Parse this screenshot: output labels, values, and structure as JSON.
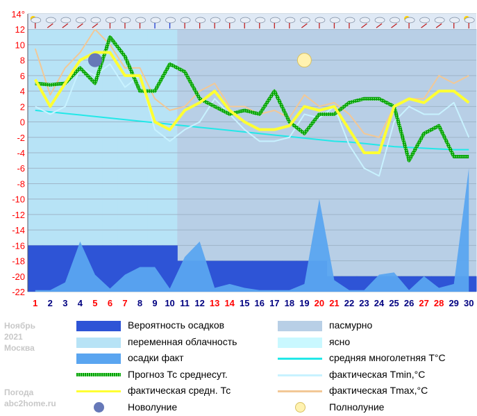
{
  "page": {
    "month": "Ноябрь",
    "year": "2021",
    "city": "Москва",
    "site_line1": "Погода",
    "site_line2": "abc2home.ru"
  },
  "colors": {
    "precip_prob": "#2e54d6",
    "precip_fact": "#5aa5f0",
    "overcast": "#b8cfe6",
    "partly": "#b7e3f6",
    "clear": "#c9f8ff",
    "forecast": "#00a000",
    "actual_mean": "#ffff33",
    "climate_mean": "#22e8e8",
    "tmin": "#c8f2ff",
    "tmax": "#f2c896",
    "weekend": "#ff0000",
    "weekday": "#000080"
  },
  "chart_data": {
    "type": "line",
    "x": [
      1,
      2,
      3,
      4,
      5,
      6,
      7,
      8,
      9,
      10,
      11,
      12,
      13,
      14,
      15,
      16,
      17,
      18,
      19,
      20,
      21,
      22,
      23,
      24,
      25,
      26,
      27,
      28,
      29,
      30
    ],
    "x_labels": [
      "1",
      "2",
      "3",
      "4",
      "5",
      "6",
      "7",
      "8",
      "9",
      "10",
      "11",
      "12",
      "13",
      "14",
      "15",
      "16",
      "17",
      "18",
      "19",
      "20",
      "21",
      "22",
      "23",
      "24",
      "25",
      "26",
      "27",
      "28",
      "29",
      "30"
    ],
    "weekend_days": [
      1,
      5,
      6,
      7,
      13,
      14,
      20,
      21,
      27,
      28
    ],
    "y_ticks": [
      "14°",
      "12",
      "10",
      "8",
      "6",
      "4",
      "2",
      "0",
      "-2",
      "-4",
      "-6",
      "-8",
      "-10",
      "-12",
      "-14",
      "-16",
      "-18",
      "-20",
      "-22"
    ],
    "ylim": [
      -22,
      14
    ],
    "grid": true,
    "sky": [
      "partly",
      "partly",
      "partly",
      "partly",
      "partly",
      "partly",
      "partly",
      "partly",
      "partly",
      "partly",
      "overcast",
      "overcast",
      "overcast",
      "overcast",
      "overcast",
      "overcast",
      "overcast",
      "overcast",
      "overcast",
      "overcast",
      "overcast",
      "overcast",
      "overcast",
      "overcast",
      "overcast",
      "overcast",
      "overcast",
      "overcast",
      "overcast",
      "overcast"
    ],
    "wind_icons": [
      "arrow-up-icon",
      "arrow-ne-icon",
      "arrow-ne-icon",
      "arrow-ne-icon",
      "arrow-ne-icon",
      "arrow-up-icon",
      "arrow-up-icon",
      "arrow-up-icon",
      "arrow-down-icon",
      "arrow-down-icon",
      "arrow-up-icon",
      "arrow-up-icon",
      "arrow-up-icon",
      "arrow-up-icon",
      "arrow-up-icon",
      "arrow-up-icon",
      "arrow-up-icon",
      "arrow-up-icon",
      "arrow-ne-icon",
      "arrow-up-icon",
      "arrow-up-icon",
      "arrow-up-icon",
      "arrow-ne-icon",
      "arrow-ne-icon",
      "arrow-ne-icon",
      "arrow-up-icon",
      "arrow-ne-icon",
      "arrow-ne-icon",
      "arrow-up-icon",
      "arrow-up-icon"
    ],
    "sky_icons": [
      "sun-cloud-icon",
      "cloud-icon",
      "cloud-icon",
      "cloud-icon",
      "cloud-icon",
      "cloud-icon",
      "cloud-icon",
      "cloud-icon",
      "cloud-icon",
      "cloud-icon",
      "cloud-icon",
      "cloud-icon",
      "cloud-icon",
      "cloud-icon",
      "cloud-icon",
      "cloud-icon",
      "cloud-icon",
      "cloud-icon",
      "cloud-icon",
      "cloud-icon",
      "cloud-icon",
      "cloud-icon",
      "cloud-icon",
      "cloud-icon",
      "cloud-icon",
      "sun-cloud-icon",
      "cloud-icon",
      "cloud-icon",
      "cloud-icon",
      "sun-cloud-icon"
    ],
    "series": [
      {
        "name": "Прогноз Тс среднесут.",
        "key": "forecast",
        "values": [
          5,
          4.8,
          5,
          7,
          5,
          11,
          8.5,
          4,
          4,
          7.5,
          6.5,
          3,
          2,
          1,
          1.5,
          1,
          4,
          0,
          -1.5,
          1,
          1,
          2.5,
          3,
          3,
          2,
          -5,
          -1.5,
          -0.5,
          -4.5,
          -4.5
        ]
      },
      {
        "name": "фактическая средн. Тс",
        "key": "actual_mean",
        "values": [
          5.5,
          2,
          5,
          8,
          9,
          9,
          6,
          6,
          0,
          -1,
          1.5,
          2.5,
          4,
          1.5,
          0,
          -1,
          -1,
          -0.5,
          2,
          1.5,
          2,
          -1,
          -4,
          -4,
          2,
          3,
          2.5,
          4,
          4,
          2.5
        ]
      },
      {
        "name": "средняя многолетняя T°C",
        "key": "climate_mean",
        "values": [
          1.5,
          1.3,
          1.1,
          0.9,
          0.7,
          0.5,
          0.3,
          0.1,
          -0.1,
          -0.3,
          -0.5,
          -0.7,
          -0.9,
          -1.1,
          -1.3,
          -1.5,
          -1.7,
          -1.9,
          -2.1,
          -2.3,
          -2.5,
          -2.6,
          -2.8,
          -3.0,
          -3.2,
          -3.3,
          -3.4,
          -3.5,
          -3.6,
          -3.6
        ]
      },
      {
        "name": "фактическая Tmin,°C",
        "key": "tmin",
        "values": [
          2,
          1,
          2,
          7,
          6,
          7.5,
          4.5,
          6,
          -1,
          -2.5,
          -1,
          0,
          3,
          1,
          -1,
          -2.5,
          -2.5,
          -2,
          1,
          0.5,
          2,
          -3,
          -6,
          -7,
          0,
          2,
          1,
          1,
          2.5,
          -2
        ]
      },
      {
        "name": "фактическая Tmax,°C",
        "key": "tmax",
        "values": [
          9.5,
          3.5,
          7,
          9,
          12,
          10,
          7,
          7,
          3,
          1.5,
          2,
          4,
          5,
          2,
          2,
          1,
          1.5,
          0.5,
          3.5,
          2,
          2.5,
          1,
          -1.5,
          -2,
          2,
          3,
          3,
          6,
          5,
          6
        ]
      },
      {
        "name": "осадки факт",
        "key": "precip_fact",
        "values": [
          -21.8,
          -21.8,
          -20.8,
          -15.5,
          -19.8,
          -21.6,
          -19.8,
          -18.8,
          -18.8,
          -21.6,
          -17.5,
          -15.5,
          -21.5,
          -21.0,
          -21.5,
          -21.8,
          -21.8,
          -21.8,
          -21.0,
          -10.0,
          -20.5,
          -21.8,
          -21.8,
          -19.8,
          -19.5,
          -21.8,
          -20.0,
          -21.5,
          -21.0,
          -6.0
        ]
      }
    ],
    "precip_prob_levels": [
      -16,
      -16,
      -16,
      -16,
      -16,
      -16,
      -16,
      -16,
      -16,
      -16,
      -18,
      -18,
      -18,
      -18,
      -18,
      -18,
      -18,
      -18,
      -18,
      -18,
      -20,
      -20,
      -20,
      -20,
      -20,
      -20,
      -20,
      -20,
      -20,
      -20
    ],
    "new_moon_day": 5,
    "full_moon_day": 19
  },
  "legend": [
    {
      "label": "Вероятность осадков",
      "swatch": "block",
      "color_key": "precip_prob",
      "symbol": ""
    },
    {
      "label": "пасмурно",
      "swatch": "block",
      "color_key": "overcast",
      "symbol": ""
    },
    {
      "label": "переменная облачность",
      "swatch": "block",
      "color_key": "partly",
      "symbol": ""
    },
    {
      "label": "ясно",
      "swatch": "block",
      "color_key": "clear",
      "symbol": ""
    },
    {
      "label": "осадки факт",
      "swatch": "block",
      "color_key": "precip_fact",
      "symbol": ""
    },
    {
      "label": "средняя многолетняя T°C",
      "swatch": "line",
      "color_key": "climate_mean",
      "symbol": ""
    },
    {
      "label": "Прогноз Тс среднесут.",
      "swatch": "dotted",
      "color_key": "forecast",
      "symbol": ""
    },
    {
      "label": "фактическая Tmin,°C",
      "swatch": "line",
      "color_key": "tmin",
      "symbol": ""
    },
    {
      "label": "фактическая средн. Тс",
      "swatch": "line",
      "color_key": "actual_mean",
      "symbol": ""
    },
    {
      "label": "фактическая Tmax,°C",
      "swatch": "line",
      "color_key": "tmax",
      "symbol": ""
    },
    {
      "label": "Новолуние",
      "swatch": "moon-new",
      "color_key": "",
      "symbol": "new-moon-icon"
    },
    {
      "label": "Полнолуние",
      "swatch": "moon-full",
      "color_key": "",
      "symbol": "full-moon-icon"
    }
  ]
}
